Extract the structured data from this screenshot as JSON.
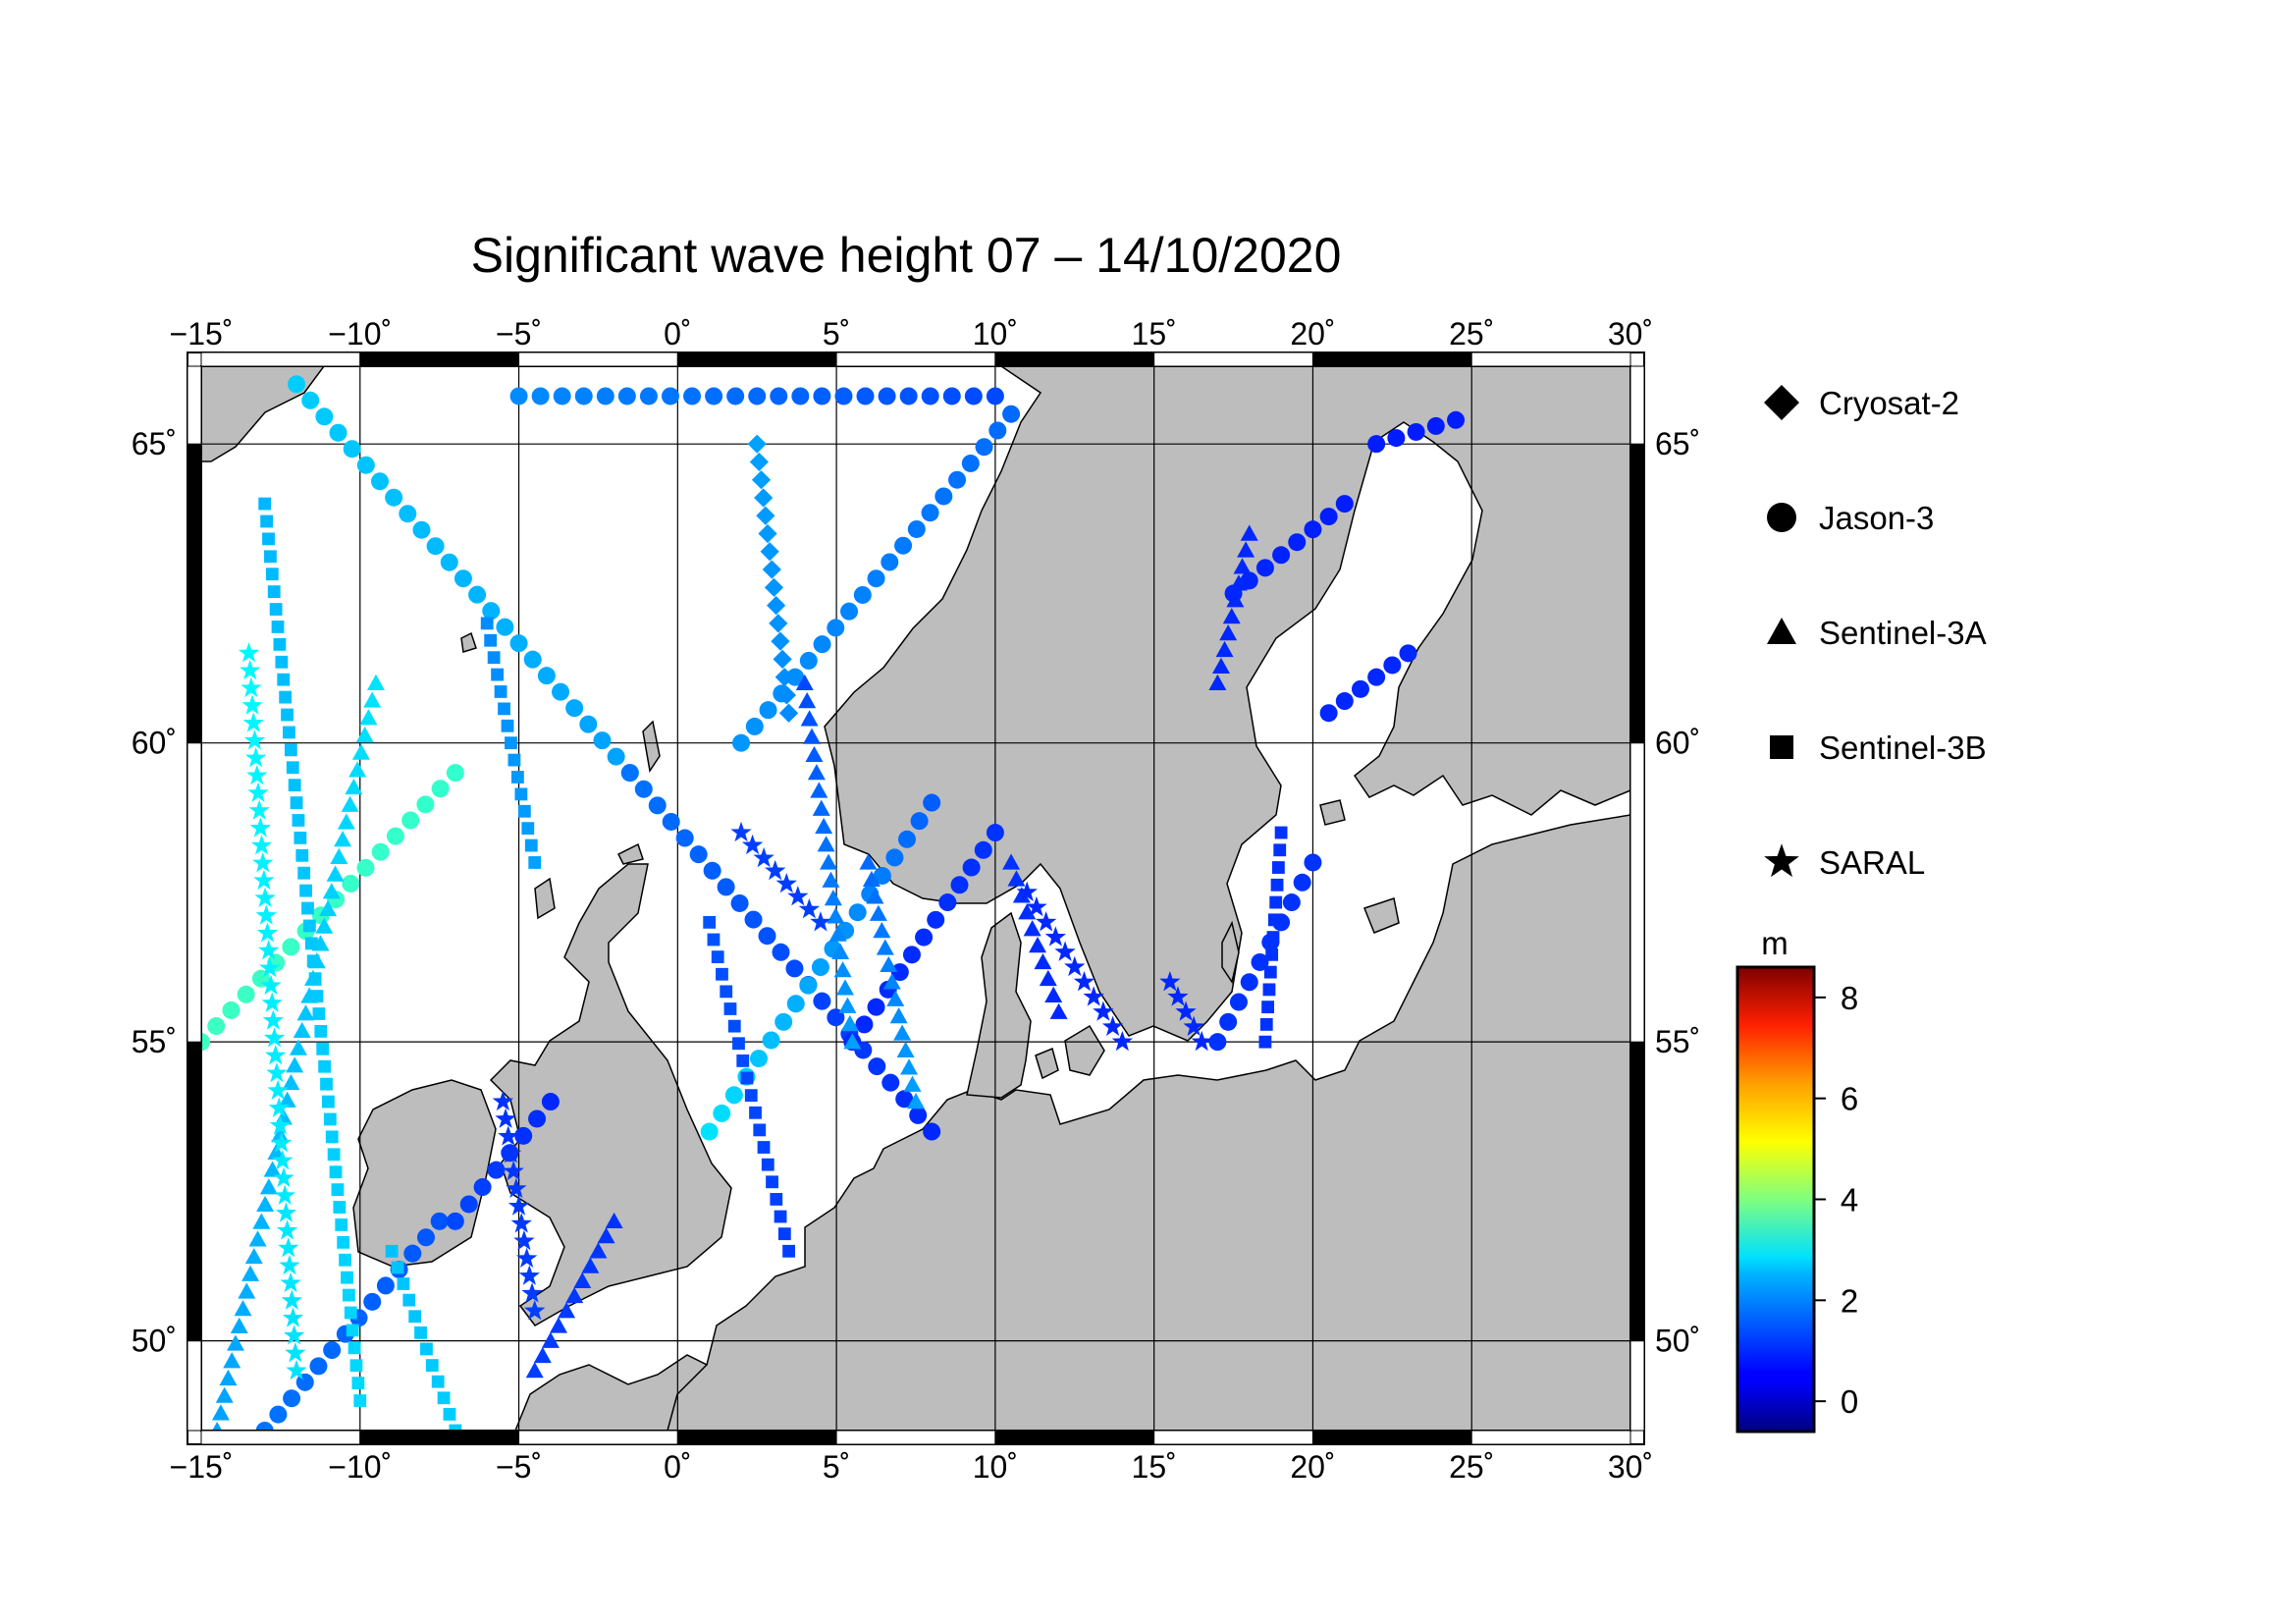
{
  "title": "Significant wave height 07 – 14/10/2020",
  "map": {
    "lon_range": [
      -15,
      30
    ],
    "lat_range": [
      48.5,
      66.3
    ],
    "lon_ticks": [
      -15,
      -10,
      -5,
      0,
      5,
      10,
      15,
      20,
      25,
      30
    ],
    "lon_tick_labels": [
      "−15˚",
      "−10˚",
      "−5˚",
      "0˚",
      "5˚",
      "10˚",
      "15˚",
      "20˚",
      "25˚",
      "30˚"
    ],
    "lat_ticks": [
      50,
      55,
      60,
      65
    ],
    "lat_tick_labels": [
      "50˚",
      "55˚",
      "60˚",
      "65˚"
    ],
    "grid": true,
    "land_color": "#bdbdbd",
    "sea_color": "#ffffff"
  },
  "legend": {
    "position": "right",
    "items": [
      {
        "label": "Cryosat-2",
        "symbol": "diamond"
      },
      {
        "label": "Jason-3",
        "symbol": "circle"
      },
      {
        "label": "Sentinel-3A",
        "symbol": "triangle"
      },
      {
        "label": "Sentinel-3B",
        "symbol": "square"
      },
      {
        "label": "SARAL",
        "symbol": "star"
      }
    ]
  },
  "colorbar": {
    "unit": "m",
    "range": [
      -0.6,
      8.6
    ],
    "ticks": [
      0,
      2,
      4,
      6,
      8
    ],
    "tick_labels": [
      "0",
      "2",
      "4",
      "6",
      "8"
    ],
    "colormap": "jet"
  },
  "chart_data": {
    "type": "scatter",
    "title": "Significant wave height 07 – 14/10/2020",
    "xlabel": "",
    "ylabel": "",
    "xlim": [
      -15,
      30
    ],
    "ylim": [
      48.5,
      66.3
    ],
    "series": [
      {
        "name": "Jason-3",
        "symbol": "circle",
        "tracks": [
          {
            "from": [
              -12,
              66
            ],
            "to": [
              -1.5,
              59.5
            ],
            "swh_from": 2.4,
            "swh_to": 2.0
          },
          {
            "from": [
              -1.5,
              59.5
            ],
            "to": [
              8,
              53.5
            ],
            "swh_from": 1.6,
            "swh_to": 0.9
          },
          {
            "from": [
              -15,
              55
            ],
            "to": [
              -7,
              59.5
            ],
            "swh_from": 3.4,
            "swh_to": 3.3
          },
          {
            "from": [
              -13,
              48.5
            ],
            "to": [
              -7.5,
              52
            ],
            "swh_from": 1.6,
            "swh_to": 1.3
          },
          {
            "from": [
              -7,
              52
            ],
            "to": [
              -4,
              54
            ],
            "swh_from": 1.2,
            "swh_to": 0.9
          },
          {
            "from": [
              1,
              53.5
            ],
            "to": [
              8,
              59
            ],
            "swh_from": 2.6,
            "swh_to": 1.4
          },
          {
            "from": [
              2,
              60
            ],
            "to": [
              10.5,
              65.5
            ],
            "swh_from": 1.9,
            "swh_to": 1.5
          },
          {
            "from": [
              -5,
              65.8
            ],
            "to": [
              10,
              65.8
            ],
            "swh_from": 1.8,
            "swh_to": 1.2
          },
          {
            "from": [
              10,
              58.5
            ],
            "to": [
              5.5,
              55
            ],
            "swh_from": 1.0,
            "swh_to": 0.9
          },
          {
            "from": [
              17,
              55
            ],
            "to": [
              20,
              58
            ],
            "swh_from": 1.0,
            "swh_to": 1.0
          },
          {
            "from": [
              20.5,
              60.5
            ],
            "to": [
              23,
              61.5
            ],
            "swh_from": 0.9,
            "swh_to": 0.9
          },
          {
            "from": [
              17.5,
              62.5
            ],
            "to": [
              21,
              64
            ],
            "swh_from": 0.9,
            "swh_to": 0.8
          },
          {
            "from": [
              22,
              65
            ],
            "to": [
              24.5,
              65.4
            ],
            "swh_from": 0.8,
            "swh_to": 0.8
          }
        ]
      },
      {
        "name": "Sentinel-3A",
        "symbol": "triangle",
        "tracks": [
          {
            "from": [
              -14.5,
              48.5
            ],
            "to": [
              -9.5,
              61
            ],
            "swh_from": 2.0,
            "swh_to": 2.6
          },
          {
            "from": [
              4,
              61
            ],
            "to": [
              5.5,
              55
            ],
            "swh_from": 1.2,
            "swh_to": 2.0
          },
          {
            "from": [
              6,
              58
            ],
            "to": [
              7.5,
              54
            ],
            "swh_from": 1.5,
            "swh_to": 2.0
          },
          {
            "from": [
              -2,
              52
            ],
            "to": [
              -4.5,
              49.5
            ],
            "swh_from": 1.0,
            "swh_to": 1.1
          },
          {
            "from": [
              10.5,
              58
            ],
            "to": [
              12,
              55.5
            ],
            "swh_from": 1.0,
            "swh_to": 0.9
          },
          {
            "from": [
              18,
              63.5
            ],
            "to": [
              17,
              61
            ],
            "swh_from": 0.9,
            "swh_to": 0.9
          }
        ]
      },
      {
        "name": "Sentinel-3B",
        "symbol": "square",
        "tracks": [
          {
            "from": [
              -13,
              64
            ],
            "to": [
              -10,
              49
            ],
            "swh_from": 2.2,
            "swh_to": 2.5
          },
          {
            "from": [
              -6,
              62
            ],
            "to": [
              -4.5,
              58
            ],
            "swh_from": 1.8,
            "swh_to": 2.0
          },
          {
            "from": [
              1,
              57
            ],
            "to": [
              3.5,
              51.5
            ],
            "swh_from": 1.3,
            "swh_to": 1.1
          },
          {
            "from": [
              19,
              58.5
            ],
            "to": [
              18.5,
              55
            ],
            "swh_from": 1.0,
            "swh_to": 1.0
          },
          {
            "from": [
              -9,
              51.5
            ],
            "to": [
              -7,
              48.5
            ],
            "swh_from": 2.3,
            "swh_to": 2.4
          }
        ]
      },
      {
        "name": "SARAL",
        "symbol": "star",
        "tracks": [
          {
            "from": [
              -12,
              49.5
            ],
            "to": [
              -13.5,
              61.5
            ],
            "swh_from": 2.6,
            "swh_to": 2.8
          },
          {
            "from": [
              -5.5,
              54
            ],
            "to": [
              -4.5,
              50.5
            ],
            "swh_from": 1.0,
            "swh_to": 1.1
          },
          {
            "from": [
              2,
              58.5
            ],
            "to": [
              4.5,
              57
            ],
            "swh_from": 1.1,
            "swh_to": 1.1
          },
          {
            "from": [
              11,
              57.5
            ],
            "to": [
              14,
              55
            ],
            "swh_from": 0.9,
            "swh_to": 0.9
          },
          {
            "from": [
              15.5,
              56
            ],
            "to": [
              16.5,
              55
            ],
            "swh_from": 0.9,
            "swh_to": 0.9
          }
        ]
      },
      {
        "name": "Cryosat-2",
        "symbol": "diamond",
        "tracks": [
          {
            "from": [
              2.5,
              65
            ],
            "to": [
              3.5,
              60.5
            ],
            "swh_from": 2.0,
            "swh_to": 1.8
          }
        ]
      }
    ]
  }
}
